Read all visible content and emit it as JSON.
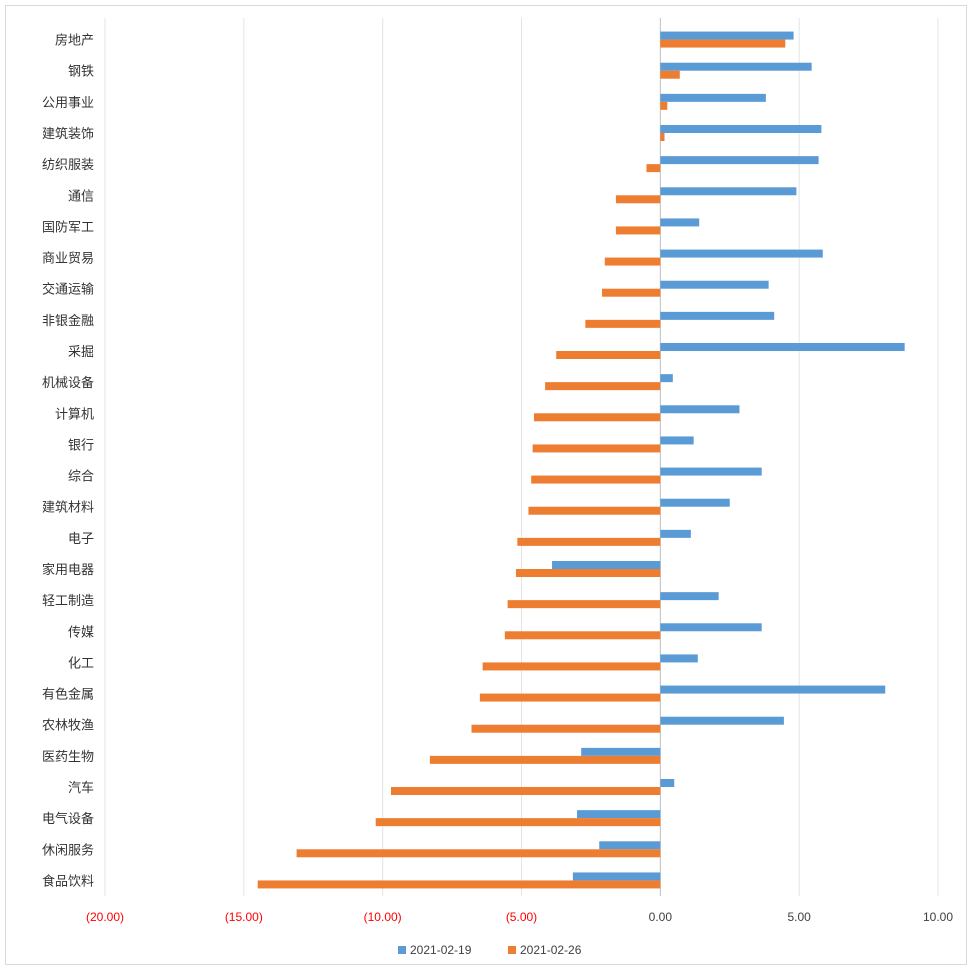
{
  "chart_data": {
    "type": "bar",
    "orientation": "horizontal",
    "categories": [
      "房地产",
      "钢铁",
      "公用事业",
      "建筑装饰",
      "纺织服装",
      "通信",
      "国防军工",
      "商业贸易",
      "交通运输",
      "非银金融",
      "采掘",
      "机械设备",
      "计算机",
      "银行",
      "综合",
      "建筑材料",
      "电子",
      "家用电器",
      "轻工制造",
      "传媒",
      "化工",
      "有色金属",
      "农林牧渔",
      "医药生物",
      "汽车",
      "电气设备",
      "休闲服务",
      "食品饮料"
    ],
    "series": [
      {
        "name": "2021-02-19",
        "color": "#5b9bd5",
        "values": [
          4.8,
          5.45,
          3.8,
          5.8,
          5.7,
          4.9,
          1.4,
          5.85,
          3.9,
          4.1,
          8.8,
          0.45,
          2.85,
          1.2,
          3.65,
          2.5,
          1.1,
          -3.9,
          2.1,
          3.65,
          1.35,
          8.1,
          4.45,
          -2.85,
          0.5,
          -3.0,
          -2.2,
          -3.15
        ]
      },
      {
        "name": "2021-02-26",
        "color": "#ed7d31",
        "values": [
          4.5,
          0.7,
          0.25,
          0.15,
          -0.5,
          -1.6,
          -1.6,
          -2.0,
          -2.1,
          -2.7,
          -3.75,
          -4.15,
          -4.55,
          -4.6,
          -4.65,
          -4.75,
          -5.15,
          -5.2,
          -5.5,
          -5.6,
          -6.4,
          -6.5,
          -6.8,
          -8.3,
          -9.7,
          -10.25,
          -13.1,
          -14.5
        ]
      }
    ],
    "xlim": [
      -20,
      10
    ],
    "xticks": [
      "(20.00)",
      "(15.00)",
      "(10.00)",
      "(5.00)",
      "0.00",
      "5.00",
      "10.00"
    ],
    "negative_tick_color": "#ff0000",
    "positive_tick_color": "#404040",
    "grid": "vertical",
    "legend_position": "bottom"
  },
  "legend": [
    {
      "label": "2021-02-19",
      "color": "#5b9bd5"
    },
    {
      "label": "2021-02-26",
      "color": "#ed7d31"
    }
  ]
}
